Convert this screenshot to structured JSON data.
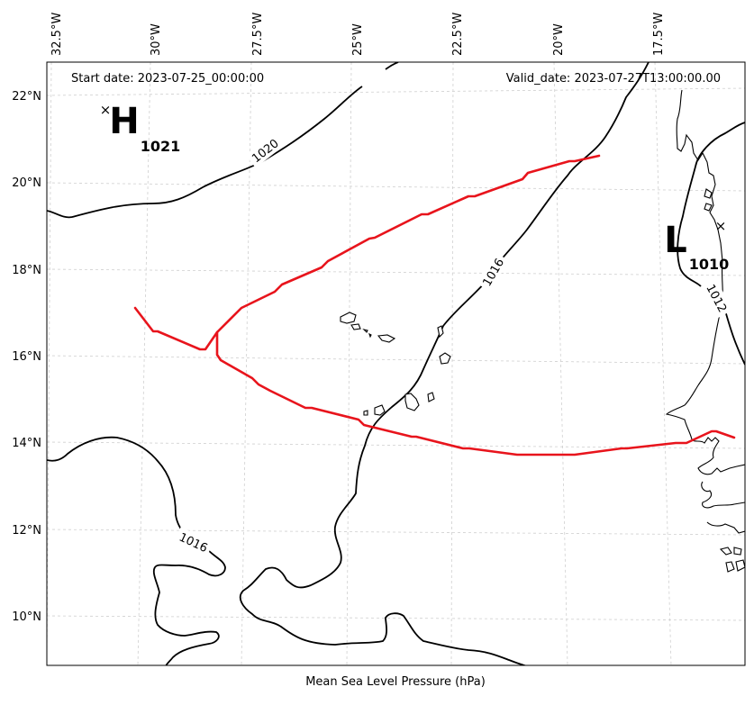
{
  "header": {
    "start_date": "Start date: 2023-07-25_00:00:00",
    "valid_date": "Valid_date: 2023-07-27T13:00:00.00"
  },
  "axes": {
    "lon_labels": [
      "32.5°W",
      "30°W",
      "27.5°W",
      "25°W",
      "22.5°W",
      "20°W",
      "17.5°W"
    ],
    "lat_labels": [
      "22°N",
      "20°N",
      "18°N",
      "16°N",
      "14°N",
      "12°N",
      "10°N"
    ],
    "xlabel": "Mean Sea Level Pressure (hPa)"
  },
  "pressure_centers": {
    "high": {
      "letter": "H",
      "value": "1021"
    },
    "low": {
      "letter": "L",
      "value": "1010"
    }
  },
  "contour_labels": [
    "1020",
    "1016",
    "1012",
    "1016"
  ],
  "colors": {
    "track": "#e8141c",
    "contour": "#000000",
    "grid": "#cfcfcf"
  }
}
